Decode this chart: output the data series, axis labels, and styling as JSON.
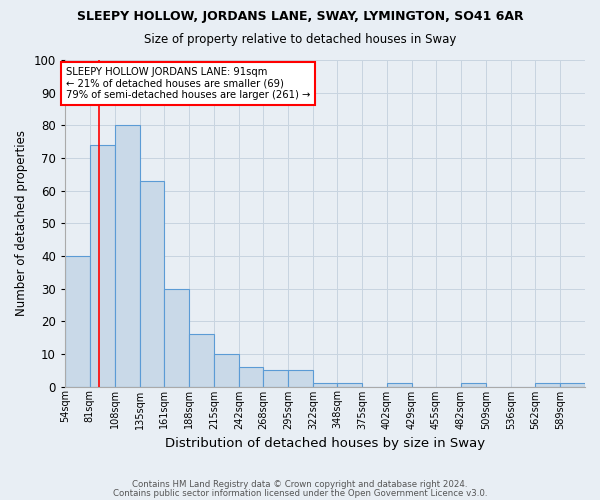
{
  "title": "SLEEPY HOLLOW, JORDANS LANE, SWAY, LYMINGTON, SO41 6AR",
  "subtitle": "Size of property relative to detached houses in Sway",
  "xlabel": "Distribution of detached houses by size in Sway",
  "ylabel": "Number of detached properties",
  "bin_labels": [
    "54sqm",
    "81sqm",
    "108sqm",
    "135sqm",
    "161sqm",
    "188sqm",
    "215sqm",
    "242sqm",
    "268sqm",
    "295sqm",
    "322sqm",
    "348sqm",
    "375sqm",
    "402sqm",
    "429sqm",
    "455sqm",
    "482sqm",
    "509sqm",
    "536sqm",
    "562sqm",
    "589sqm"
  ],
  "bin_edges": [
    54,
    81,
    108,
    135,
    161,
    188,
    215,
    242,
    268,
    295,
    322,
    348,
    375,
    402,
    429,
    455,
    482,
    509,
    536,
    562,
    589,
    616
  ],
  "values": [
    40,
    74,
    80,
    63,
    30,
    16,
    10,
    6,
    5,
    5,
    1,
    1,
    0,
    1,
    0,
    0,
    1,
    0,
    0,
    1,
    1
  ],
  "bar_color": "#c9d9e8",
  "bar_edge_color": "#5b9bd5",
  "bar_linewidth": 0.8,
  "red_line_x": 91,
  "annotation_title": "SLEEPY HOLLOW JORDANS LANE: 91sqm",
  "annotation_line2": "← 21% of detached houses are smaller (69)",
  "annotation_line3": "79% of semi-detached houses are larger (261) →",
  "annotation_box_color": "white",
  "annotation_box_edge_color": "red",
  "ylim": [
    0,
    100
  ],
  "yticks": [
    0,
    10,
    20,
    30,
    40,
    50,
    60,
    70,
    80,
    90,
    100
  ],
  "grid_color": "#c8d4e0",
  "background_color": "#e8eef4",
  "footnote1": "Contains HM Land Registry data © Crown copyright and database right 2024.",
  "footnote2": "Contains public sector information licensed under the Open Government Licence v3.0."
}
